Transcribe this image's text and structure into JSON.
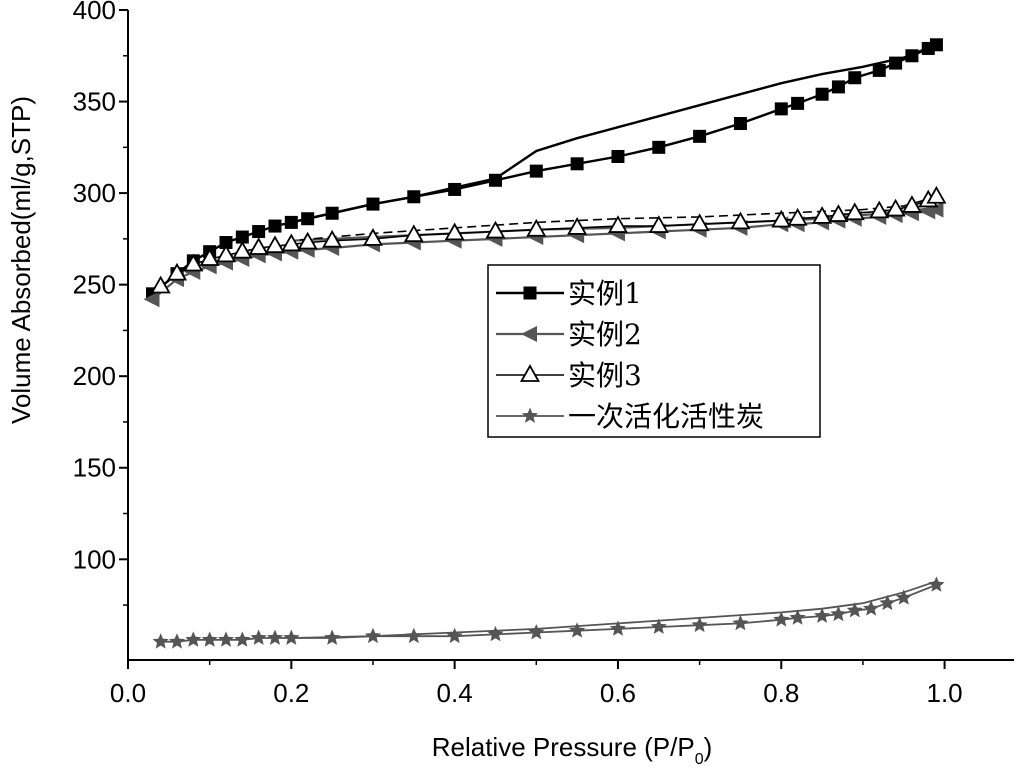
{
  "chart_data": {
    "type": "line",
    "xlabel": "Relative Pressure (P/P",
    "xlabel_sub": "0",
    "xlabel_end": ")",
    "ylabel": "Volume Absorbed(ml/g,STP)",
    "xlim": [
      0.0,
      1.085
    ],
    "ylim": [
      45,
      400
    ],
    "x_ticks": [
      0.0,
      0.2,
      0.4,
      0.6,
      0.8,
      1.0
    ],
    "x_tick_labels": [
      "0.0",
      "0.2",
      "0.4",
      "0.6",
      "0.8",
      "1.0"
    ],
    "y_ticks": [
      100,
      150,
      200,
      250,
      300,
      350,
      400
    ],
    "y_tick_labels": [
      "100",
      "150",
      "200",
      "250",
      "300",
      "350",
      "400"
    ],
    "grid": false,
    "legend_position": "center-right",
    "series": [
      {
        "name": "实例1",
        "marker": "square-filled",
        "color": "#000000",
        "adsorption": {
          "x": [
            0.03,
            0.06,
            0.08,
            0.1,
            0.12,
            0.14,
            0.16,
            0.18,
            0.2,
            0.22,
            0.25,
            0.3,
            0.35,
            0.4,
            0.45,
            0.5,
            0.55,
            0.6,
            0.65,
            0.7,
            0.75,
            0.8,
            0.82,
            0.85,
            0.87,
            0.89,
            0.92,
            0.94,
            0.96,
            0.98,
            0.99
          ],
          "y": [
            245,
            256,
            263,
            268,
            273,
            276,
            279,
            282,
            284,
            286,
            289,
            294,
            298,
            302,
            307,
            312,
            316,
            320,
            325,
            331,
            338,
            346,
            349,
            354,
            358,
            363,
            367,
            371,
            375,
            379,
            381
          ]
        },
        "desorption": {
          "x": [
            0.99,
            0.95,
            0.9,
            0.85,
            0.8,
            0.75,
            0.7,
            0.65,
            0.6,
            0.55,
            0.5,
            0.48,
            0.45,
            0.4,
            0.35,
            0.3,
            0.25,
            0.2
          ],
          "y": [
            381,
            374,
            369,
            365,
            360,
            354,
            348,
            342,
            336,
            330,
            323,
            317,
            308,
            303,
            298,
            294,
            289,
            284
          ]
        }
      },
      {
        "name": "实例2",
        "marker": "triangle-left-filled",
        "color": "#555555",
        "adsorption": {
          "x": [
            0.03,
            0.06,
            0.08,
            0.1,
            0.12,
            0.14,
            0.16,
            0.18,
            0.2,
            0.22,
            0.25,
            0.3,
            0.35,
            0.4,
            0.45,
            0.5,
            0.55,
            0.6,
            0.65,
            0.7,
            0.75,
            0.8,
            0.82,
            0.85,
            0.87,
            0.89,
            0.92,
            0.94,
            0.96,
            0.98,
            0.99
          ],
          "y": [
            242,
            253,
            257,
            260,
            262,
            264,
            266,
            267,
            268,
            269,
            270,
            272,
            273,
            274,
            275,
            276,
            277,
            278,
            279,
            280,
            281,
            283,
            283,
            284,
            285,
            286,
            287,
            288,
            289,
            290,
            291
          ]
        },
        "desorption": {
          "x": [
            0.99,
            0.95,
            0.9,
            0.85,
            0.8,
            0.7,
            0.6,
            0.5,
            0.4,
            0.3,
            0.2
          ],
          "y": [
            292,
            290,
            288,
            286,
            285,
            283,
            281,
            280,
            278,
            276,
            274
          ]
        }
      },
      {
        "name": "实例3",
        "marker": "triangle-up-open",
        "color": "#000000",
        "adsorption": {
          "x": [
            0.04,
            0.06,
            0.08,
            0.1,
            0.12,
            0.14,
            0.16,
            0.18,
            0.2,
            0.22,
            0.25,
            0.3,
            0.35,
            0.4,
            0.45,
            0.5,
            0.55,
            0.6,
            0.65,
            0.7,
            0.75,
            0.8,
            0.82,
            0.85,
            0.87,
            0.89,
            0.92,
            0.94,
            0.96,
            0.98,
            0.99
          ],
          "y": [
            249,
            256,
            261,
            264,
            266,
            268,
            270,
            271,
            272,
            273,
            274,
            275,
            277,
            278,
            279,
            280,
            281,
            282,
            282,
            283,
            284,
            285,
            286,
            287,
            288,
            289,
            290,
            291,
            293,
            296,
            298
          ]
        },
        "desorption": {
          "x": [
            0.99,
            0.95,
            0.9,
            0.85,
            0.8,
            0.7,
            0.6,
            0.5,
            0.4,
            0.3,
            0.2
          ],
          "y": [
            298,
            293,
            291,
            290,
            289,
            287,
            286,
            284,
            281,
            278,
            274
          ]
        }
      },
      {
        "name": "一次活化活性炭",
        "marker": "star-filled",
        "color": "#555555",
        "adsorption": {
          "x": [
            0.04,
            0.06,
            0.08,
            0.1,
            0.12,
            0.14,
            0.16,
            0.18,
            0.2,
            0.25,
            0.3,
            0.35,
            0.4,
            0.45,
            0.5,
            0.55,
            0.6,
            0.65,
            0.7,
            0.75,
            0.8,
            0.82,
            0.85,
            0.87,
            0.89,
            0.91,
            0.93,
            0.95,
            0.99
          ],
          "y": [
            55,
            55,
            56,
            56,
            56,
            56,
            57,
            57,
            57,
            57,
            58,
            58,
            58,
            59,
            60,
            61,
            62,
            63,
            64,
            65,
            67,
            68,
            69,
            70,
            72,
            73,
            76,
            79,
            86
          ]
        },
        "desorption": {
          "x": [
            0.99,
            0.95,
            0.9,
            0.85,
            0.8,
            0.7,
            0.6,
            0.5,
            0.4,
            0.3,
            0.2
          ],
          "y": [
            88,
            82,
            76,
            73,
            71,
            68,
            65,
            62,
            60,
            58,
            57
          ]
        }
      }
    ]
  }
}
